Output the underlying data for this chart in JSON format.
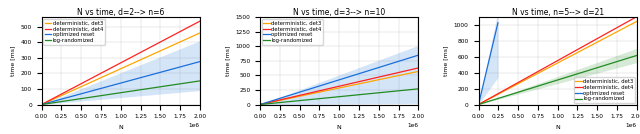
{
  "plots": [
    {
      "title": "N vs time, d=2--> n=6",
      "xlabel": "N",
      "ylabel": "time [ms]",
      "xlim": [
        0,
        2000000
      ],
      "ylim": [
        0,
        560
      ],
      "lines": {
        "det3": {
          "color": "#FFA500",
          "slope": 0.00023,
          "label": "deterministic, det3"
        },
        "det4": {
          "color": "#FF2222",
          "slope": 0.000268,
          "label": "deterministic, det4"
        },
        "opt": {
          "color": "#1a6fdb",
          "slope": 0.000138,
          "slope_hi": 0.000205,
          "slope_lo": 4.5e-05,
          "label": "optimized reset"
        },
        "log": {
          "color": "#228B22",
          "slope": 7.6e-05,
          "label": "log-randomized"
        }
      },
      "legend_loc": "upper left"
    },
    {
      "title": "N vs time, d=3--> n=10",
      "xlabel": "N",
      "ylabel": "time [ms]",
      "xlim": [
        0,
        2000000
      ],
      "ylim": [
        0,
        1500
      ],
      "lines": {
        "det3": {
          "color": "#FFA500",
          "slope": 0.000285,
          "label": "deterministic, det3"
        },
        "det4": {
          "color": "#FF2222",
          "slope": 0.000315,
          "label": "deterministic, det4"
        },
        "opt": {
          "color": "#1a6fdb",
          "slope": 0.000425,
          "slope_hi": 0.00051,
          "slope_lo": 1e-05,
          "label": "optimized reset"
        },
        "log": {
          "color": "#228B22",
          "slope": 0.000135,
          "label": "log-randomized"
        }
      },
      "legend_loc": "upper left"
    },
    {
      "title": "N vs time, n=5--> d=21",
      "xlabel": "N",
      "ylabel": "time [ms]",
      "xlim": [
        0,
        2000000
      ],
      "ylim": [
        0,
        1100
      ],
      "lines": {
        "det3": {
          "color": "#FFA500",
          "slope": 0.000525,
          "label": "deterministic, det3"
        },
        "det4": {
          "color": "#FF2222",
          "slope": 0.000555,
          "label": "deterministic, det4"
        },
        "opt": {
          "color": "#1a6fdb",
          "slope_cutoff": 250000,
          "slope_line": 0.0042,
          "slope_hi": 0.0048,
          "slope_lo": 0.0014,
          "label": "optimized reset"
        },
        "log": {
          "color": "#228B22",
          "slope": 0.00031,
          "slope_hi": 0.000355,
          "slope_lo": 0.000265,
          "label": "log-randomized"
        }
      },
      "legend_loc": "lower right"
    }
  ],
  "bg_color": "#ffffff",
  "line_width": 0.9,
  "font_title": 5.5,
  "font_axis": 4.5,
  "font_legend": 3.8,
  "fill_alpha": 0.18
}
